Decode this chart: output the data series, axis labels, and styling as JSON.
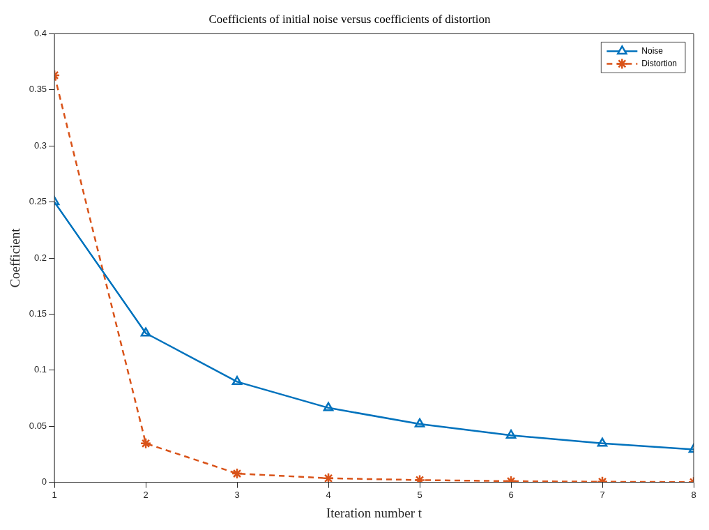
{
  "chart_data": {
    "type": "line",
    "title": "Coefficients of initial noise versus coefficients of distortion",
    "xlabel": "Iteration number t",
    "ylabel": "Coefficient",
    "x": [
      1,
      2,
      3,
      4,
      5,
      6,
      7,
      8
    ],
    "series": [
      {
        "name": "Noise",
        "color": "#0072bd",
        "marker": "triangle",
        "line_style": "solid",
        "values": [
          0.25,
          0.133,
          0.0897,
          0.0664,
          0.052,
          0.0419,
          0.0347,
          0.0293
        ]
      },
      {
        "name": "Distortion",
        "color": "#d95319",
        "marker": "cross",
        "line_style": "dashed",
        "values": [
          0.363,
          0.0347,
          0.0078,
          0.0036,
          0.002,
          0.001,
          0.0005,
          0.0002
        ]
      }
    ],
    "xlim": [
      1,
      8
    ],
    "xticks": [
      1,
      2,
      3,
      4,
      5,
      6,
      7,
      8
    ],
    "ylim": [
      0,
      0.4
    ],
    "yticks": [
      0,
      0.05,
      0.1,
      0.15,
      0.2,
      0.25,
      0.3,
      0.35,
      0.4
    ],
    "grid": false,
    "legend": "top right"
  }
}
